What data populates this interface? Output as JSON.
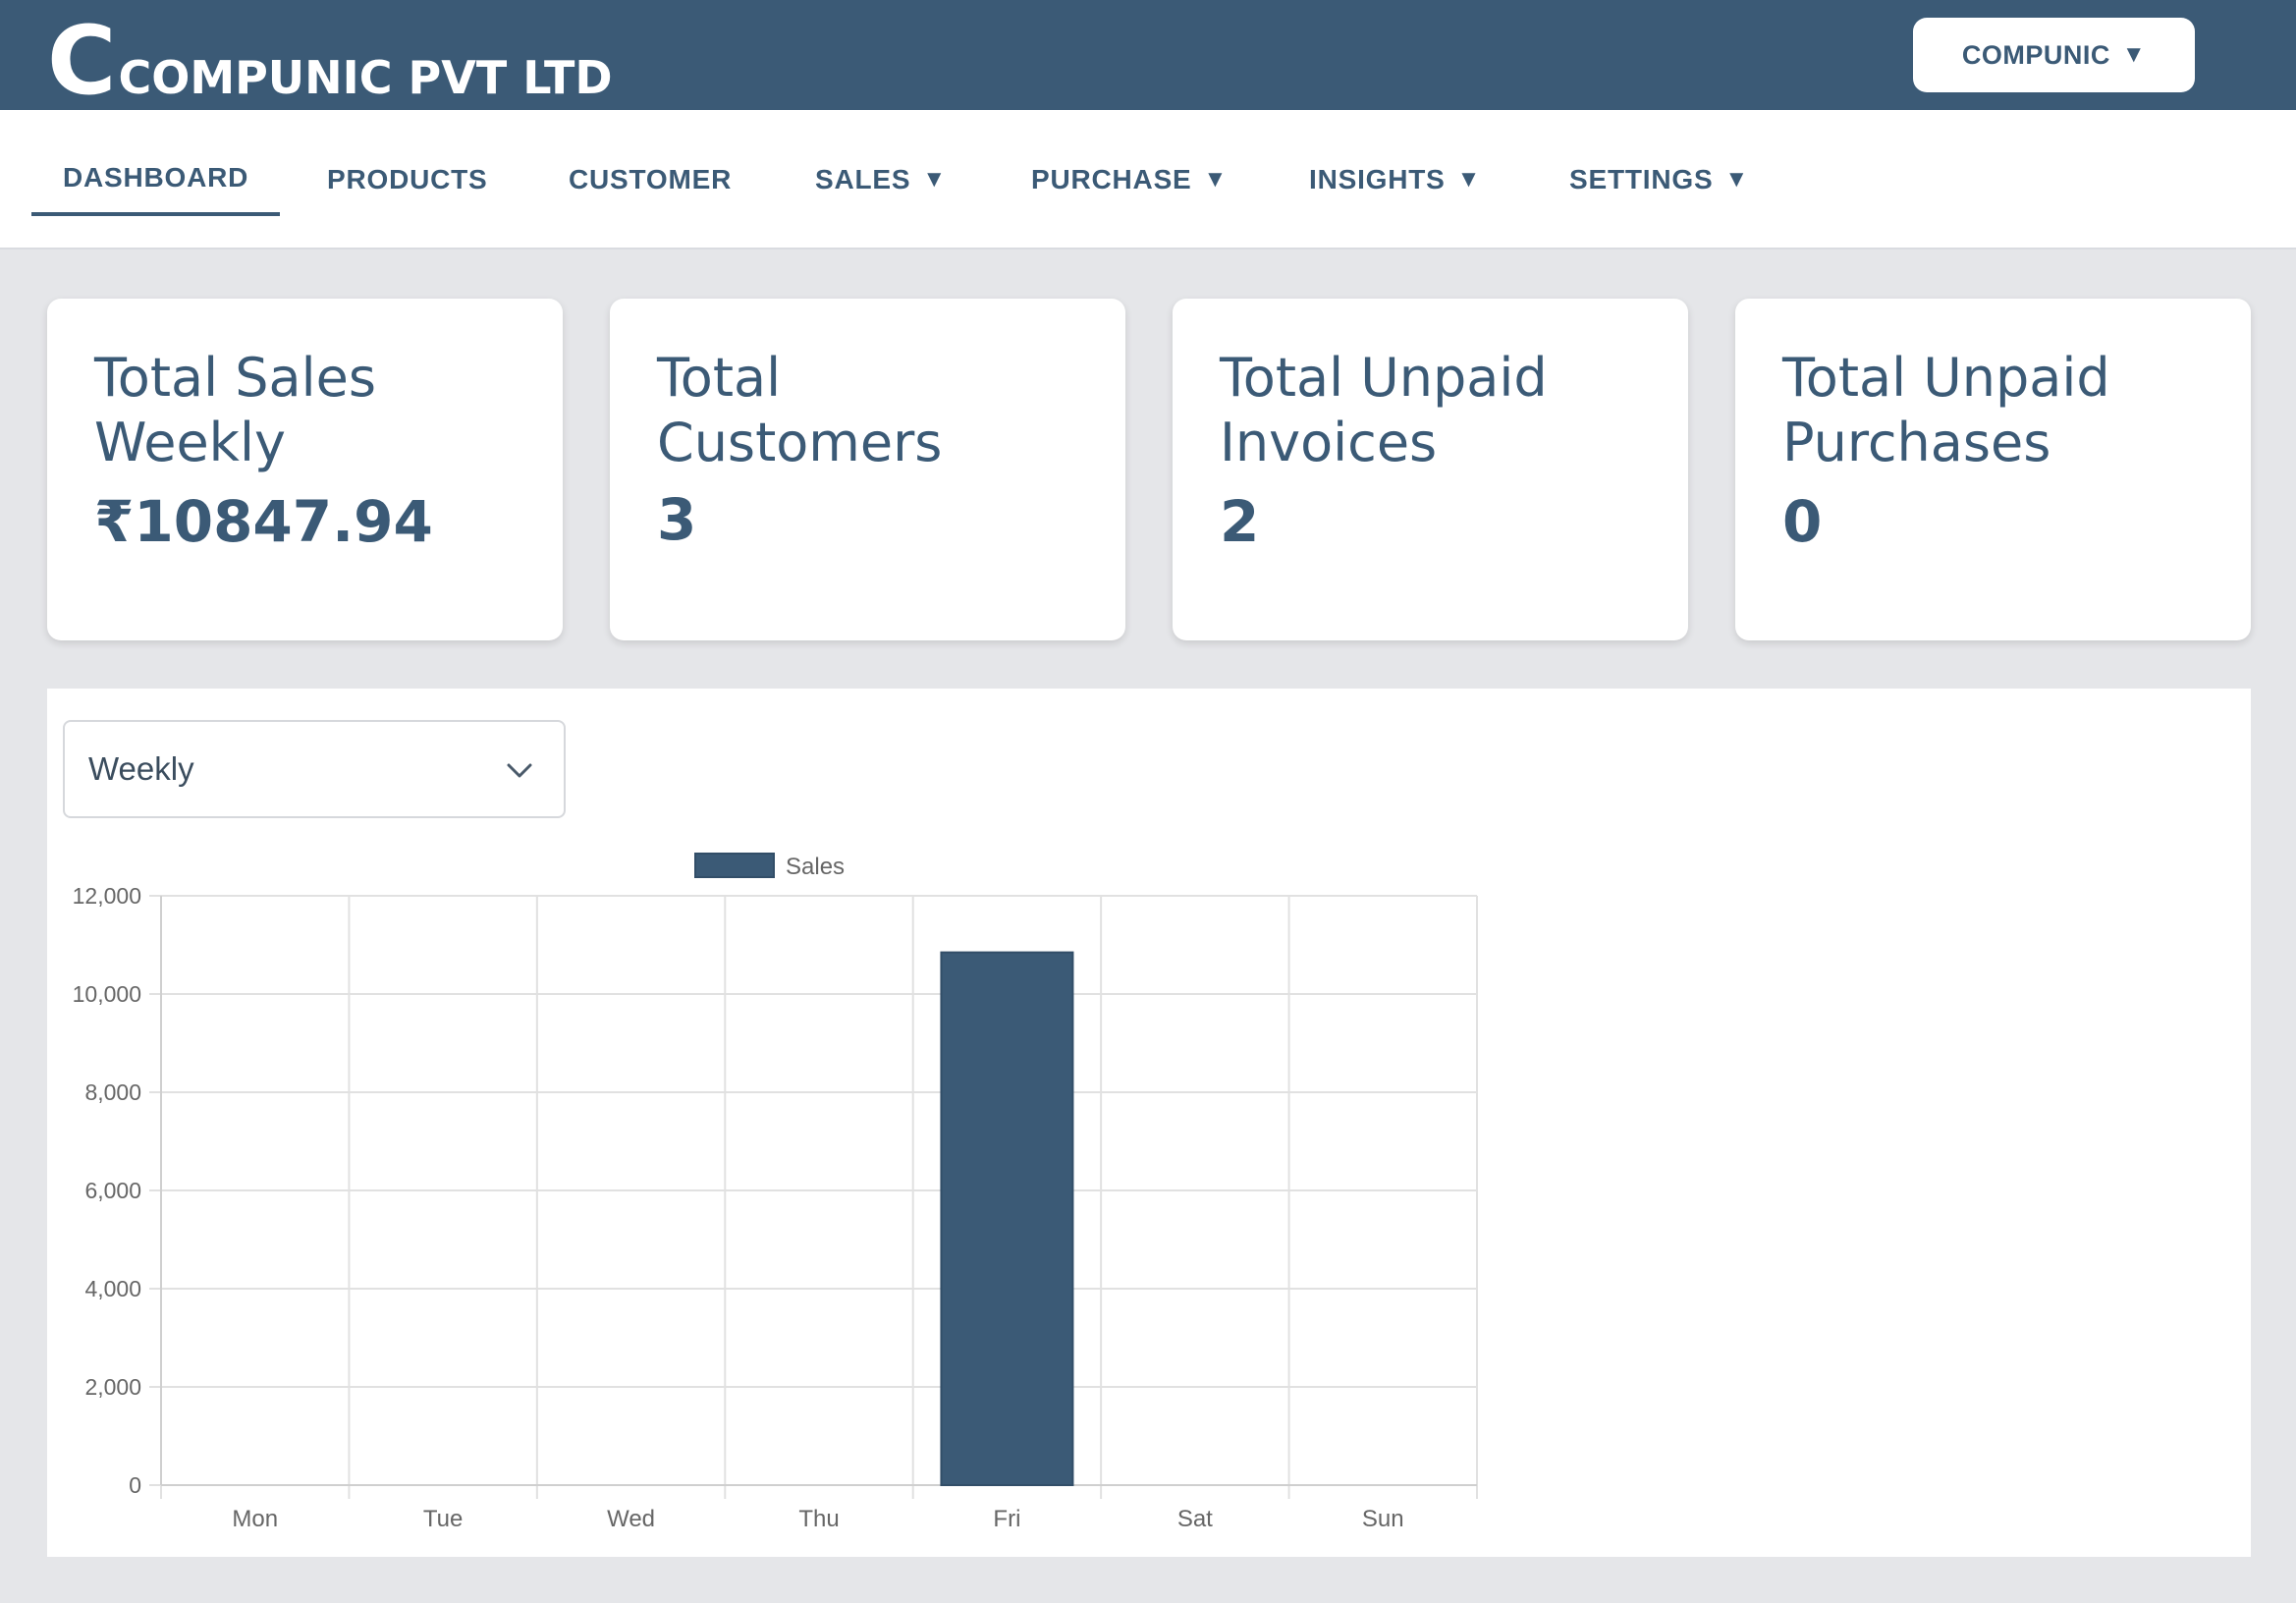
{
  "header": {
    "logo_letter": "C",
    "company_name": "COMPUNIC PVT LTD",
    "company_selector": {
      "label": "COMPUNIC",
      "caret": "▼"
    }
  },
  "nav": {
    "items": [
      {
        "label": "DASHBOARD",
        "caret": ""
      },
      {
        "label": "PRODUCTS",
        "caret": ""
      },
      {
        "label": "CUSTOMER",
        "caret": ""
      },
      {
        "label": "SALES",
        "caret": "▼"
      },
      {
        "label": "PURCHASE",
        "caret": "▼"
      },
      {
        "label": "INSIGHTS",
        "caret": "▼"
      },
      {
        "label": "SETTINGS",
        "caret": "▼"
      }
    ]
  },
  "cards": [
    {
      "title_line1": "Total Sales",
      "title_line2": "Weekly",
      "value": "₹10847.94"
    },
    {
      "title_line1": "Total Customers",
      "title_line2": "",
      "value": "3"
    },
    {
      "title_line1": "Total Unpaid",
      "title_line2": "Invoices",
      "value": "2"
    },
    {
      "title_line1": "Total Unpaid",
      "title_line2": "Purchases",
      "value": "0"
    }
  ],
  "period_select": {
    "value": "Weekly",
    "icon": "chevron-down-icon"
  },
  "colors": {
    "primary": "#3b5a76",
    "background": "#e5e6e9",
    "card": "#ffffff"
  },
  "chart_data": {
    "type": "bar",
    "title": "",
    "legend": [
      "Sales"
    ],
    "categories": [
      "Mon",
      "Tue",
      "Wed",
      "Thu",
      "Fri",
      "Sat",
      "Sun"
    ],
    "series": [
      {
        "name": "Sales",
        "values": [
          0,
          0,
          0,
          0,
          10847.94,
          0,
          0
        ]
      }
    ],
    "ylim": [
      0,
      12000
    ],
    "yticks": [
      0,
      2000,
      4000,
      6000,
      8000,
      10000,
      12000
    ],
    "ytick_labels": [
      "0",
      "2,000",
      "4,000",
      "6,000",
      "8,000",
      "10,000",
      "12,000"
    ],
    "xlabel": "",
    "ylabel": "",
    "grid": true,
    "legend_position": "top"
  }
}
